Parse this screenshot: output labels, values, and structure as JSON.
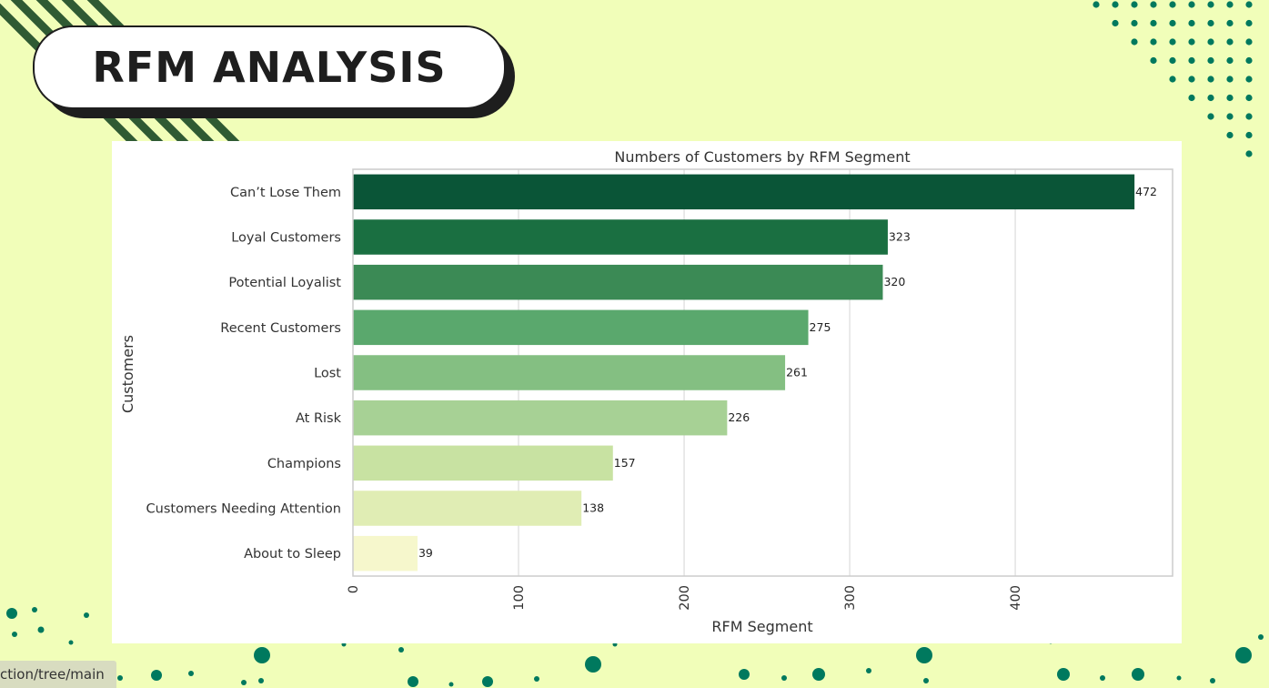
{
  "page": {
    "title": "RFM ANALYSIS",
    "status_url": "ction/tree/main"
  },
  "colors": {
    "background": "#f1feb9",
    "deco_green": "#00795e",
    "stripe_green": "#2f5a33"
  },
  "chart_data": {
    "type": "bar",
    "orientation": "horizontal",
    "title": "Numbers of Customers by RFM Segment",
    "xlabel": "RFM Segment",
    "ylabel": "Customers",
    "xlim": [
      0,
      495
    ],
    "xticks": [
      0,
      100,
      200,
      300,
      400
    ],
    "grid": true,
    "categories": [
      "Can’t Lose Them",
      "Loyal Customers",
      "Potential Loyalist",
      "Recent Customers",
      "Lost",
      "At Risk",
      "Champions",
      "Customers Needing Attention",
      "About to Sleep"
    ],
    "values": [
      472,
      323,
      320,
      275,
      261,
      226,
      157,
      138,
      39
    ],
    "colors": [
      "#0a5537",
      "#1a6f41",
      "#3b8a55",
      "#5aa86d",
      "#84bf82",
      "#a7d195",
      "#c8e2a2",
      "#e0edb4",
      "#f6f7cc"
    ]
  }
}
